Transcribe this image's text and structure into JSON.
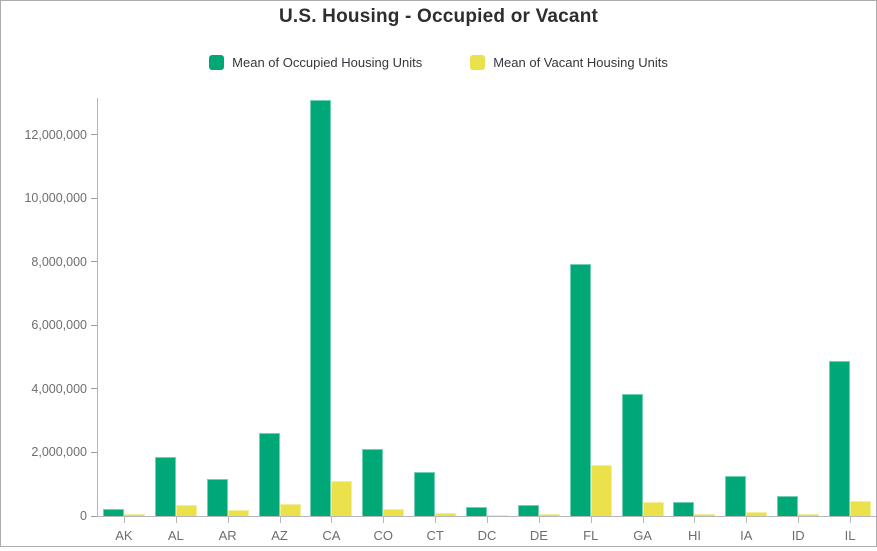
{
  "title": "U.S. Housing - Occupied or Vacant",
  "legend": {
    "items": [
      {
        "label": "Mean of Occupied Housing Units",
        "color": "#00a878"
      },
      {
        "label": "Mean of Vacant Housing Units",
        "color": "#ebe14b"
      }
    ]
  },
  "colors": {
    "occupied": "#00a878",
    "vacant": "#ebe14b",
    "title_text": "#2e2e2e",
    "axis_label_text": "#6e6e6e",
    "axis_line": "#b7b7b7",
    "frame_border": "#acacac"
  },
  "chart_data": {
    "type": "bar",
    "title": "U.S. Housing - Occupied or Vacant",
    "xlabel": "",
    "ylabel": "",
    "grid": false,
    "legend_position": "top",
    "categories": [
      "AK",
      "AL",
      "AR",
      "AZ",
      "CA",
      "CO",
      "CT",
      "DC",
      "DE",
      "FL",
      "GA",
      "HI",
      "IA",
      "ID",
      "IL"
    ],
    "series": [
      {
        "name": "Mean of Occupied Housing Units",
        "color": "#00a878",
        "values": [
          230000,
          1870000,
          1150000,
          2600000,
          13100000,
          2100000,
          1380000,
          270000,
          345000,
          7930000,
          3830000,
          430000,
          1260000,
          620000,
          4870000
        ]
      },
      {
        "name": "Mean of Vacant Housing Units",
        "color": "#ebe14b",
        "values": [
          50000,
          355000,
          180000,
          365000,
          1090000,
          220000,
          110000,
          30000,
          55000,
          1590000,
          450000,
          55000,
          115000,
          60000,
          460000
        ]
      }
    ],
    "ylim": [
      0,
      13150000
    ],
    "yticks": [
      0,
      2000000,
      4000000,
      6000000,
      8000000,
      10000000,
      12000000
    ],
    "ytick_labels": [
      "0",
      "2,000,000",
      "4,000,000",
      "6,000,000",
      "8,000,000",
      "10,000,000",
      "12,000,000"
    ]
  }
}
